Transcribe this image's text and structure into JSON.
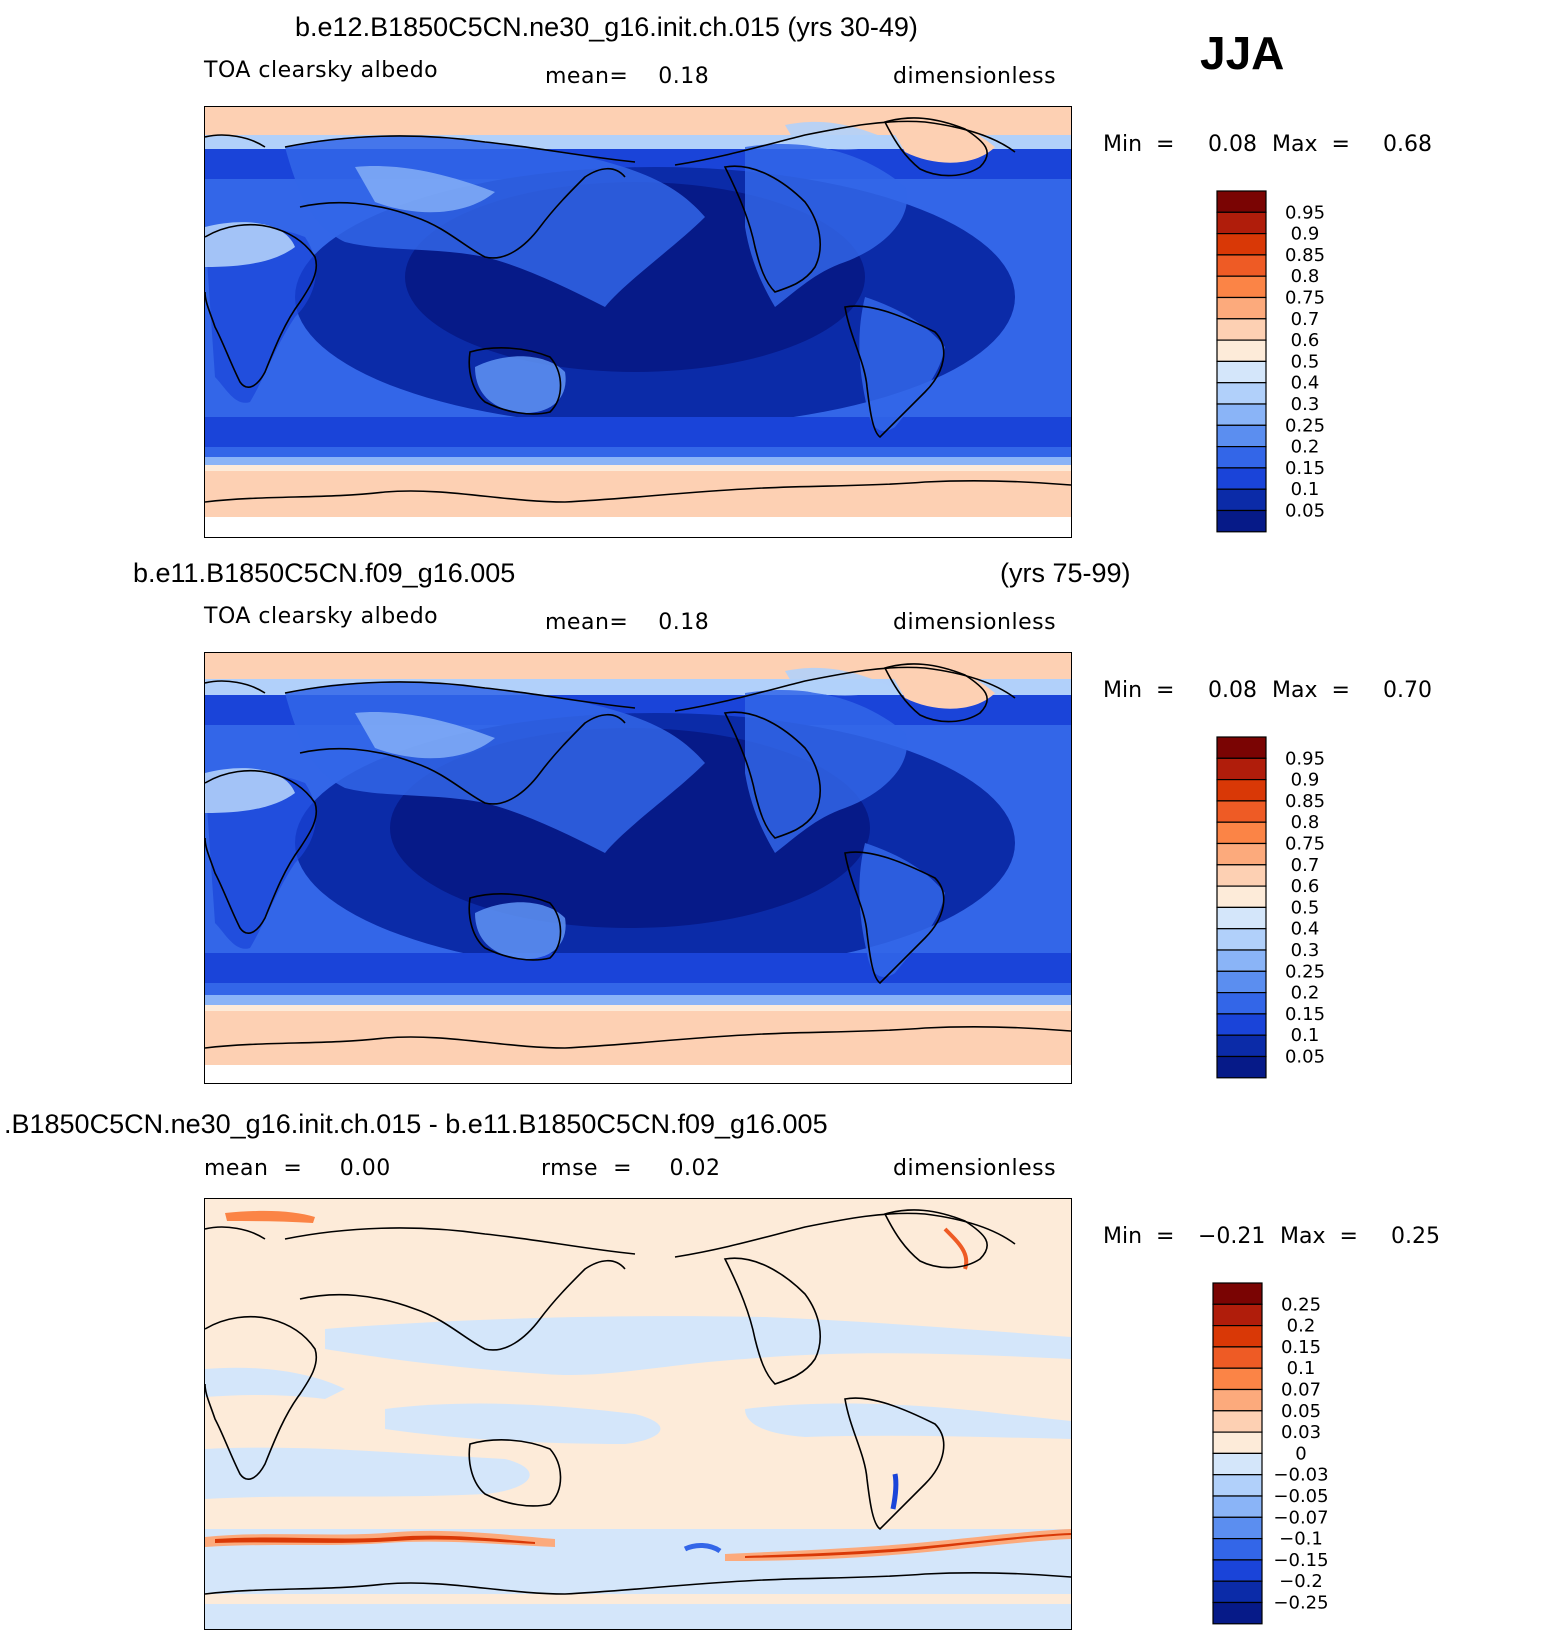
{
  "season": "JJA",
  "panels": [
    {
      "title": "b.e12.B1850C5CN.ne30_g16.init.ch.015 (yrs 30-49)",
      "left_label": "TOA clearsky albedo",
      "center_label": "mean=    0.18",
      "right_label": "dimensionless",
      "min_label": "Min  =",
      "min_value": "0.08",
      "max_label": "Max  =",
      "max_value": "0.68",
      "colorbar": [
        "0.95",
        "0.9",
        "0.85",
        "0.8",
        "0.75",
        "0.7",
        "0.6",
        "0.5",
        "0.4",
        "0.3",
        "0.25",
        "0.2",
        "0.15",
        "0.1",
        "0.05"
      ],
      "colors": [
        "#7a0403",
        "#b01d0b",
        "#d93806",
        "#ee5b25",
        "#fb8446",
        "#fcaa7c",
        "#fdd0b3",
        "#fdebd9",
        "#d4e6fa",
        "#b1d0fa",
        "#8ab4f7",
        "#5b8ef0",
        "#3366e8",
        "#1a44d9",
        "#0b2ba8",
        "#061a88"
      ]
    },
    {
      "title_left": "b.e11.B1850C5CN.f09_g16.005",
      "title_right": "(yrs 75-99)",
      "left_label": "TOA clearsky albedo",
      "center_label": "mean=    0.18",
      "right_label": "dimensionless",
      "min_label": "Min  =",
      "min_value": "0.08",
      "max_label": "Max  =",
      "max_value": "0.70",
      "colorbar": [
        "0.95",
        "0.9",
        "0.85",
        "0.8",
        "0.75",
        "0.7",
        "0.6",
        "0.5",
        "0.4",
        "0.3",
        "0.25",
        "0.2",
        "0.15",
        "0.1",
        "0.05"
      ]
    },
    {
      "title": ".B1850C5CN.ne30_g16.init.ch.015 - b.e11.B1850C5CN.f09_g16.005",
      "left_label": "mean  =     0.00",
      "center_label": "rmse  =     0.02",
      "right_label": "dimensionless",
      "min_label": "Min  =",
      "min_value": "−0.21",
      "max_label": "Max  =",
      "max_value": "0.25",
      "colorbar": [
        "0.25",
        "0.2",
        "0.15",
        "0.1",
        "0.07",
        "0.05",
        "0.03",
        "0",
        "−0.03",
        "−0.05",
        "−0.07",
        "−0.1",
        "−0.15",
        "−0.2",
        "−0.25"
      ],
      "colors": [
        "#7a0403",
        "#b01d0b",
        "#d93806",
        "#ee5b25",
        "#fb8446",
        "#fcaa7c",
        "#fdd0b3",
        "#fdebd9",
        "#d4e6fa",
        "#b1d0fa",
        "#8ab4f7",
        "#5b8ef0",
        "#3366e8",
        "#1a44d9",
        "#0b2ba8",
        "#061a88"
      ]
    }
  ]
}
